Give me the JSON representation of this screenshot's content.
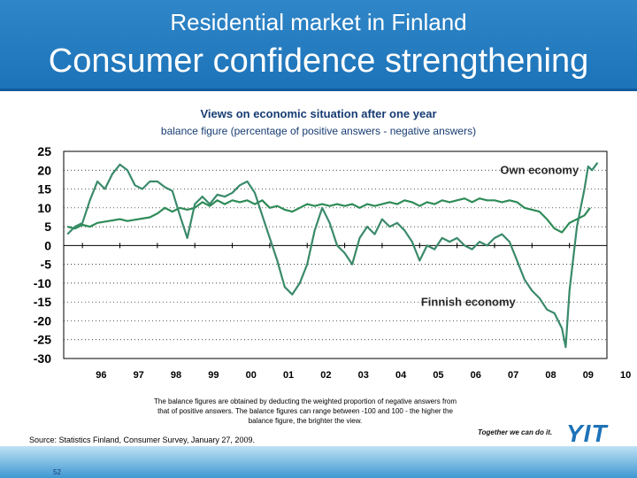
{
  "header": {
    "supertitle": "Residential market in Finland",
    "title": "Consumer confidence strengthening"
  },
  "footnote": "The balance figures are obtained by deducting the weighted proportion of negative answers from that of positive answers. The balance figures can range between -100 and 100 - the higher the balance figure, the brighter the view.",
  "source": "Source: Statistics Finland, Consumer Survey, January 27, 2009.",
  "brand": {
    "tagline": "Together we can do it.",
    "logo": "YIT",
    "accent_color": "#1d73b8"
  },
  "page_number": "52",
  "chart_data": {
    "type": "line",
    "title": "Views on economic situation after one year",
    "subtitle": "balance figure (percentage of positive answers - negative answers)",
    "xlabel": "",
    "ylabel": "",
    "x_tick_labels": [
      "96",
      "97",
      "98",
      "99",
      "00",
      "01",
      "02",
      "03",
      "04",
      "05",
      "06",
      "07",
      "08",
      "09",
      "10"
    ],
    "y_ticks": [
      25,
      20,
      15,
      10,
      5,
      0,
      -5,
      -10,
      -15,
      -20,
      -25,
      -30
    ],
    "ylim": [
      -30,
      25
    ],
    "xlim": [
      1995.5,
      2010.0
    ],
    "grid": "horizontal dotted",
    "series": [
      {
        "name": "Own economy",
        "color": "#2e8b57",
        "points": [
          [
            1995.6,
            5
          ],
          [
            1995.8,
            4.5
          ],
          [
            1996.0,
            5.5
          ],
          [
            1996.2,
            5
          ],
          [
            1996.4,
            6
          ],
          [
            1996.7,
            6.5
          ],
          [
            1997.0,
            7
          ],
          [
            1997.2,
            6.5
          ],
          [
            1997.5,
            7
          ],
          [
            1997.8,
            7.5
          ],
          [
            1998.0,
            8.5
          ],
          [
            1998.2,
            10
          ],
          [
            1998.4,
            9
          ],
          [
            1998.6,
            10
          ],
          [
            1998.8,
            9.5
          ],
          [
            1999.0,
            10
          ],
          [
            1999.2,
            11.5
          ],
          [
            1999.4,
            10.5
          ],
          [
            1999.6,
            12
          ],
          [
            1999.8,
            11
          ],
          [
            2000.0,
            12
          ],
          [
            2000.2,
            11.5
          ],
          [
            2000.4,
            12
          ],
          [
            2000.6,
            11
          ],
          [
            2000.8,
            12
          ],
          [
            2001.0,
            10
          ],
          [
            2001.2,
            10.5
          ],
          [
            2001.4,
            9.5
          ],
          [
            2001.6,
            9
          ],
          [
            2001.8,
            10
          ],
          [
            2002.0,
            11
          ],
          [
            2002.2,
            10.5
          ],
          [
            2002.4,
            11
          ],
          [
            2002.6,
            10.5
          ],
          [
            2002.8,
            11
          ],
          [
            2003.0,
            10.5
          ],
          [
            2003.2,
            11
          ],
          [
            2003.4,
            10
          ],
          [
            2003.6,
            11
          ],
          [
            2003.8,
            10.5
          ],
          [
            2004.0,
            11
          ],
          [
            2004.2,
            11.5
          ],
          [
            2004.4,
            11
          ],
          [
            2004.6,
            12
          ],
          [
            2004.8,
            11.5
          ],
          [
            2005.0,
            10.5
          ],
          [
            2005.2,
            11.5
          ],
          [
            2005.4,
            11
          ],
          [
            2005.6,
            12
          ],
          [
            2005.8,
            11.5
          ],
          [
            2006.0,
            12
          ],
          [
            2006.2,
            12.5
          ],
          [
            2006.4,
            11.5
          ],
          [
            2006.6,
            12.5
          ],
          [
            2006.8,
            12
          ],
          [
            2007.0,
            12
          ],
          [
            2007.2,
            11.5
          ],
          [
            2007.4,
            12
          ],
          [
            2007.6,
            11.5
          ],
          [
            2007.8,
            10
          ],
          [
            2008.0,
            9.5
          ],
          [
            2008.2,
            9
          ],
          [
            2008.4,
            7
          ],
          [
            2008.6,
            4.5
          ],
          [
            2008.8,
            3.5
          ],
          [
            2009.0,
            6
          ],
          [
            2009.2,
            7
          ],
          [
            2009.4,
            8
          ],
          [
            2009.55,
            10
          ]
        ]
      },
      {
        "name": "Finnish economy",
        "color": "#3a8a6a",
        "points": [
          [
            1995.6,
            3
          ],
          [
            1995.8,
            5
          ],
          [
            1996.0,
            6
          ],
          [
            1996.2,
            12
          ],
          [
            1996.4,
            17
          ],
          [
            1996.6,
            15
          ],
          [
            1996.8,
            19
          ],
          [
            1997.0,
            21.5
          ],
          [
            1997.2,
            20
          ],
          [
            1997.4,
            16
          ],
          [
            1997.6,
            15
          ],
          [
            1997.8,
            17
          ],
          [
            1998.0,
            17
          ],
          [
            1998.2,
            15.5
          ],
          [
            1998.4,
            14.5
          ],
          [
            1998.6,
            8
          ],
          [
            1998.8,
            2
          ],
          [
            1999.0,
            11
          ],
          [
            1999.2,
            13
          ],
          [
            1999.4,
            11
          ],
          [
            1999.6,
            13.5
          ],
          [
            1999.8,
            13
          ],
          [
            2000.0,
            14
          ],
          [
            2000.2,
            16
          ],
          [
            2000.4,
            17
          ],
          [
            2000.6,
            14
          ],
          [
            2000.8,
            8
          ],
          [
            2001.0,
            2
          ],
          [
            2001.2,
            -4
          ],
          [
            2001.4,
            -11
          ],
          [
            2001.6,
            -13
          ],
          [
            2001.8,
            -10
          ],
          [
            2002.0,
            -5
          ],
          [
            2002.2,
            4
          ],
          [
            2002.4,
            10
          ],
          [
            2002.6,
            6
          ],
          [
            2002.8,
            0
          ],
          [
            2003.0,
            -2
          ],
          [
            2003.2,
            -5
          ],
          [
            2003.4,
            2
          ],
          [
            2003.6,
            5
          ],
          [
            2003.8,
            3
          ],
          [
            2004.0,
            7
          ],
          [
            2004.2,
            5
          ],
          [
            2004.4,
            6
          ],
          [
            2004.6,
            4
          ],
          [
            2004.8,
            1
          ],
          [
            2005.0,
            -4
          ],
          [
            2005.2,
            0
          ],
          [
            2005.4,
            -1
          ],
          [
            2005.6,
            2
          ],
          [
            2005.8,
            1
          ],
          [
            2006.0,
            2
          ],
          [
            2006.2,
            0
          ],
          [
            2006.4,
            -1
          ],
          [
            2006.6,
            1
          ],
          [
            2006.8,
            0
          ],
          [
            2007.0,
            2
          ],
          [
            2007.2,
            3
          ],
          [
            2007.4,
            1
          ],
          [
            2007.6,
            -4
          ],
          [
            2007.8,
            -9
          ],
          [
            2008.0,
            -12
          ],
          [
            2008.2,
            -14
          ],
          [
            2008.4,
            -17
          ],
          [
            2008.6,
            -18
          ],
          [
            2008.8,
            -22
          ],
          [
            2008.9,
            -27
          ],
          [
            2009.0,
            -12
          ],
          [
            2009.2,
            5
          ],
          [
            2009.4,
            15
          ],
          [
            2009.5,
            21
          ],
          [
            2009.6,
            20
          ],
          [
            2009.75,
            22
          ]
        ]
      }
    ],
    "annotations": [
      {
        "text": "Own economy",
        "x": 2008.2,
        "y": 19
      },
      {
        "text": "Finnish economy",
        "x": 2006.3,
        "y": -16
      }
    ]
  }
}
